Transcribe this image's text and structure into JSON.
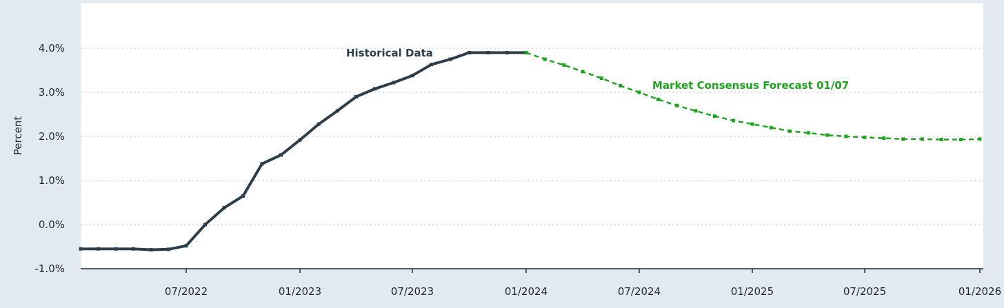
{
  "chart_data": {
    "type": "line",
    "ylabel": "Percent",
    "ylim": [
      -1.0,
      4.0
    ],
    "y_ticks": [
      "4.0%",
      "3.0%",
      "2.0%",
      "1.0%",
      "0.0%",
      "-1.0%"
    ],
    "y_tick_values": [
      4.0,
      3.0,
      2.0,
      1.0,
      0.0,
      -1.0
    ],
    "x_ticks": [
      "07/2022",
      "01/2023",
      "07/2023",
      "01/2024",
      "07/2024",
      "01/2025",
      "07/2025",
      "01/2026"
    ],
    "x_tick_values": [
      6,
      12,
      18,
      24,
      30,
      36,
      42,
      48
    ],
    "grid": true,
    "series": [
      {
        "name": "Historical Data",
        "color": "#2c3e4a",
        "style": "solid",
        "x": [
          0,
          1,
          2,
          3,
          4,
          5,
          6,
          7,
          8,
          9,
          10,
          11,
          12,
          13,
          14,
          15,
          16,
          17,
          18,
          19,
          20,
          21,
          22,
          23,
          24
        ],
        "values": [
          -0.55,
          -0.55,
          -0.55,
          -0.55,
          -0.57,
          -0.56,
          -0.48,
          0.0,
          0.38,
          0.65,
          1.38,
          1.58,
          1.92,
          2.28,
          2.58,
          2.9,
          3.08,
          3.22,
          3.38,
          3.63,
          3.75,
          3.9,
          3.9,
          3.9,
          3.9
        ]
      },
      {
        "name": "Market Consensus Forecast 01/07",
        "color": "#1ea31e",
        "style": "dashed",
        "x": [
          24,
          25,
          26,
          27,
          28,
          29,
          30,
          31,
          32,
          33,
          34,
          35,
          36,
          37,
          38,
          39,
          40,
          41,
          42,
          43,
          44,
          45,
          46,
          47,
          48
        ],
        "values": [
          3.9,
          3.75,
          3.62,
          3.47,
          3.32,
          3.15,
          3.0,
          2.84,
          2.7,
          2.58,
          2.46,
          2.36,
          2.28,
          2.2,
          2.12,
          2.08,
          2.03,
          2.0,
          1.98,
          1.96,
          1.94,
          1.94,
          1.93,
          1.93,
          1.94
        ]
      }
    ],
    "annotations": [
      {
        "text": "Historical Data",
        "color": "#2c3e4a"
      },
      {
        "text": "Market Consensus Forecast 01/07",
        "color": "#1ea31e"
      }
    ]
  }
}
